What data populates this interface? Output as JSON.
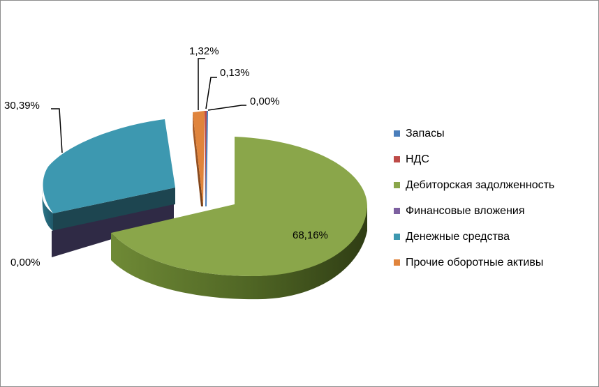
{
  "chart_data": {
    "type": "pie",
    "style": "3d-exploded",
    "title": "",
    "legend_position": "right",
    "slices": [
      {
        "label": "Запасы",
        "value": 0.0,
        "value_label": "0,00%",
        "color": "#4a7ebb"
      },
      {
        "label": "НДС",
        "value": 0.13,
        "value_label": "0,13%",
        "color": "#be4b48"
      },
      {
        "label": "Дебиторская задолженность",
        "value": 68.16,
        "value_label": "68,16%",
        "color": "#8aa64a"
      },
      {
        "label": "Финансовые вложения",
        "value": 0.0,
        "value_label": "0,00%",
        "color": "#7d60a0"
      },
      {
        "label": "Денежные средства",
        "value": 30.39,
        "value_label": "30,39%",
        "color": "#3d98b0"
      },
      {
        "label": "Прочие оборотные активы",
        "value": 1.32,
        "value_label": "1,32%",
        "color": "#e0843c"
      }
    ]
  }
}
